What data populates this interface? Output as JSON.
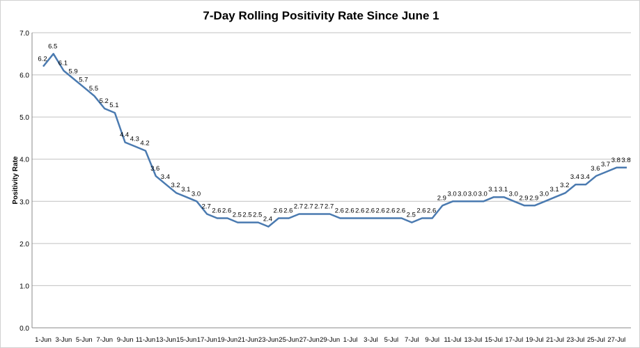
{
  "chart_data": {
    "type": "line",
    "title": "7-Day Rolling Positivity Rate Since June 1",
    "xlabel": "",
    "ylabel": "Positivity Rate",
    "ylim": [
      0,
      7
    ],
    "yticks": [
      "0.0",
      "1.0",
      "2.0",
      "3.0",
      "4.0",
      "5.0",
      "6.0",
      "7.0"
    ],
    "grid": true,
    "line_color": "#4a7ab0",
    "x": [
      "1-Jun",
      "2-Jun",
      "3-Jun",
      "4-Jun",
      "5-Jun",
      "6-Jun",
      "7-Jun",
      "8-Jun",
      "9-Jun",
      "10-Jun",
      "11-Jun",
      "12-Jun",
      "13-Jun",
      "14-Jun",
      "15-Jun",
      "16-Jun",
      "17-Jun",
      "18-Jun",
      "19-Jun",
      "20-Jun",
      "21-Jun",
      "22-Jun",
      "23-Jun",
      "24-Jun",
      "25-Jun",
      "26-Jun",
      "27-Jun",
      "28-Jun",
      "29-Jun",
      "30-Jun",
      "1-Jul",
      "2-Jul",
      "3-Jul",
      "4-Jul",
      "5-Jul",
      "6-Jul",
      "7-Jul",
      "8-Jul",
      "9-Jul",
      "10-Jul",
      "11-Jul",
      "12-Jul",
      "13-Jul",
      "14-Jul",
      "15-Jul",
      "16-Jul",
      "17-Jul",
      "18-Jul",
      "19-Jul",
      "20-Jul",
      "21-Jul",
      "22-Jul",
      "23-Jul",
      "24-Jul",
      "25-Jul",
      "26-Jul",
      "27-Jul",
      "28-Jul"
    ],
    "values": [
      6.2,
      6.5,
      6.1,
      5.9,
      5.7,
      5.5,
      5.2,
      5.1,
      4.4,
      4.3,
      4.2,
      3.6,
      3.4,
      3.2,
      3.1,
      3.0,
      2.7,
      2.6,
      2.6,
      2.5,
      2.5,
      2.5,
      2.4,
      2.6,
      2.6,
      2.7,
      2.7,
      2.7,
      2.7,
      2.6,
      2.6,
      2.6,
      2.6,
      2.6,
      2.6,
      2.6,
      2.5,
      2.6,
      2.6,
      2.9,
      3.0,
      3.0,
      3.0,
      3.0,
      3.1,
      3.1,
      3.0,
      2.9,
      2.9,
      3.0,
      3.1,
      3.2,
      3.4,
      3.4,
      3.6,
      3.7,
      3.8,
      3.8
    ],
    "xtick_every": 2
  }
}
